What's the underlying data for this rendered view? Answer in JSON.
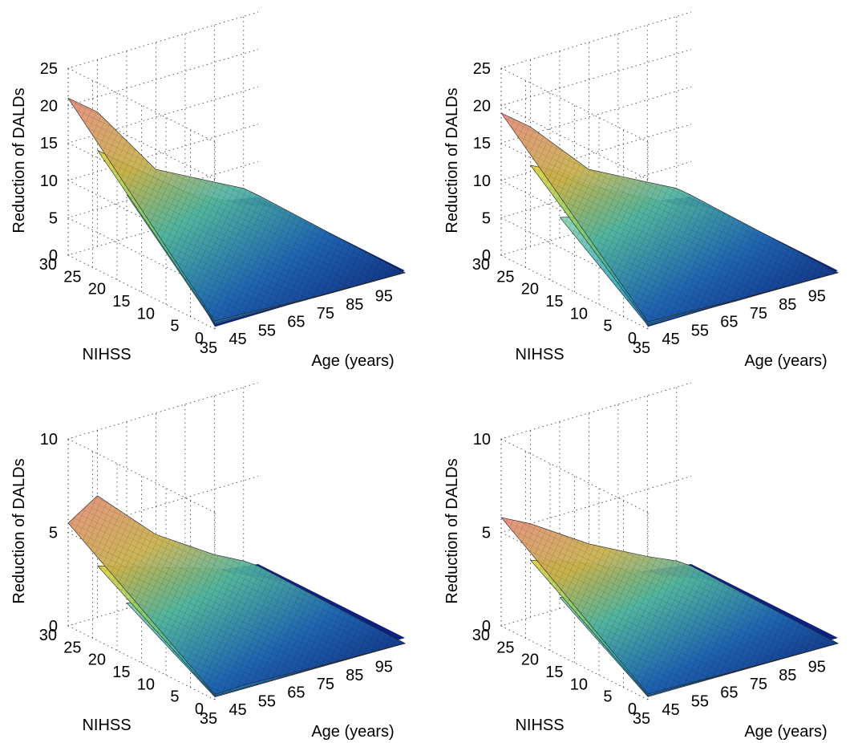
{
  "chart_data": [
    {
      "type": "surface",
      "zlabel": "Reduction of DALDs",
      "ylabel": "NIHSS",
      "xlabel": "Age (years)",
      "zlim": [
        0,
        25
      ],
      "zticks": [
        "0",
        "5",
        "10",
        "15",
        "20",
        "25"
      ],
      "yticks": [
        "0",
        "5",
        "10",
        "15",
        "20",
        "25",
        "30"
      ],
      "xticks": [
        "35",
        "45",
        "55",
        "65",
        "75",
        "85",
        "95"
      ],
      "xlim": [
        35,
        100
      ],
      "ylim": [
        0,
        30
      ],
      "grid": true,
      "series": [
        {
          "x": [
            35,
            45,
            55,
            65,
            75,
            85,
            95,
            100
          ],
          "z_at_nihss_30": [
            21,
            18,
            13,
            8,
            6,
            4,
            2,
            0.5
          ]
        },
        {
          "x": [
            35,
            45,
            55,
            65,
            75,
            85,
            95,
            100
          ],
          "z_at_nihss_30": [
            16,
            13,
            10,
            7,
            5,
            3,
            1.5,
            0.3
          ]
        },
        {
          "x": [
            35,
            45,
            55,
            65,
            75,
            85,
            95,
            100
          ],
          "z_at_nihss_30": [
            12,
            10,
            8,
            6,
            4,
            2.5,
            1,
            0.2
          ]
        }
      ]
    },
    {
      "type": "surface",
      "zlabel": "Reduction of DALDs",
      "ylabel": "NIHSS",
      "xlabel": "Age (years)",
      "zlim": [
        0,
        25
      ],
      "zticks": [
        "0",
        "5",
        "10",
        "15",
        "20",
        "25"
      ],
      "yticks": [
        "0",
        "5",
        "10",
        "15",
        "20",
        "25",
        "30"
      ],
      "xticks": [
        "35",
        "45",
        "55",
        "65",
        "75",
        "85",
        "95"
      ],
      "xlim": [
        35,
        100
      ],
      "ylim": [
        0,
        30
      ],
      "grid": true,
      "series": [
        {
          "x": [
            35,
            45,
            55,
            65,
            75,
            85,
            95,
            100
          ],
          "z_at_nihss_30": [
            19,
            16,
            12,
            8,
            6,
            4,
            2,
            0.5
          ]
        },
        {
          "x": [
            35,
            45,
            55,
            65,
            75,
            85,
            95,
            100
          ],
          "z_at_nihss_30": [
            14,
            12,
            9,
            7,
            5,
            3,
            1.5,
            0.3
          ]
        },
        {
          "x": [
            35,
            45,
            55,
            65,
            75,
            85,
            95,
            100
          ],
          "z_at_nihss_30": [
            9,
            8,
            7,
            5,
            4,
            2.5,
            1,
            0.2
          ]
        }
      ]
    },
    {
      "type": "surface",
      "zlabel": "Reduction of DALDs",
      "ylabel": "NIHSS",
      "xlabel": "Age (years)",
      "zlim": [
        0,
        10
      ],
      "zticks": [
        "0",
        "5",
        "10"
      ],
      "yticks": [
        "0",
        "5",
        "10",
        "15",
        "20",
        "25",
        "30"
      ],
      "xticks": [
        "35",
        "45",
        "55",
        "65",
        "75",
        "85",
        "95"
      ],
      "xlim": [
        35,
        100
      ],
      "ylim": [
        0,
        30
      ],
      "grid": true,
      "series": [
        {
          "x": [
            35,
            45,
            55,
            65,
            75,
            85,
            95,
            100
          ],
          "z_at_nihss_30": [
            5.5,
            6.5,
            5,
            3.5,
            2.5,
            1.5,
            0.7,
            0.2
          ]
        },
        {
          "x": [
            35,
            45,
            55,
            65,
            75,
            85,
            95,
            100
          ],
          "z_at_nihss_30": [
            4,
            3.5,
            3,
            2.5,
            2,
            1.2,
            0.5,
            0.1
          ]
        },
        {
          "x": [
            35,
            45,
            55,
            65,
            75,
            85,
            95,
            100
          ],
          "z_at_nihss_30": [
            2.8,
            2.5,
            2.2,
            1.8,
            1.4,
            0.9,
            0.4,
            0.1
          ]
        }
      ]
    },
    {
      "type": "surface",
      "zlabel": "Reduction of DALDs",
      "ylabel": "NIHSS",
      "xlabel": "Age (years)",
      "zlim": [
        0,
        10
      ],
      "zticks": [
        "0",
        "5",
        "10"
      ],
      "yticks": [
        "0",
        "5",
        "10",
        "15",
        "20",
        "25",
        "30"
      ],
      "xticks": [
        "35",
        "45",
        "55",
        "65",
        "75",
        "85",
        "95"
      ],
      "xlim": [
        35,
        100
      ],
      "ylim": [
        0,
        30
      ],
      "grid": true,
      "series": [
        {
          "x": [
            35,
            45,
            55,
            65,
            75,
            85,
            95,
            100
          ],
          "z_at_nihss_30": [
            5.8,
            5,
            4,
            3,
            2.2,
            1.4,
            0.7,
            0.2
          ]
        },
        {
          "x": [
            35,
            45,
            55,
            65,
            75,
            85,
            95,
            100
          ],
          "z_at_nihss_30": [
            4.3,
            3.8,
            3.2,
            2.5,
            1.8,
            1.1,
            0.5,
            0.1
          ]
        },
        {
          "x": [
            35,
            45,
            55,
            65,
            75,
            85,
            95,
            100
          ],
          "z_at_nihss_30": [
            3.1,
            2.8,
            2.4,
            2,
            1.5,
            0.9,
            0.4,
            0.1
          ]
        }
      ]
    }
  ]
}
